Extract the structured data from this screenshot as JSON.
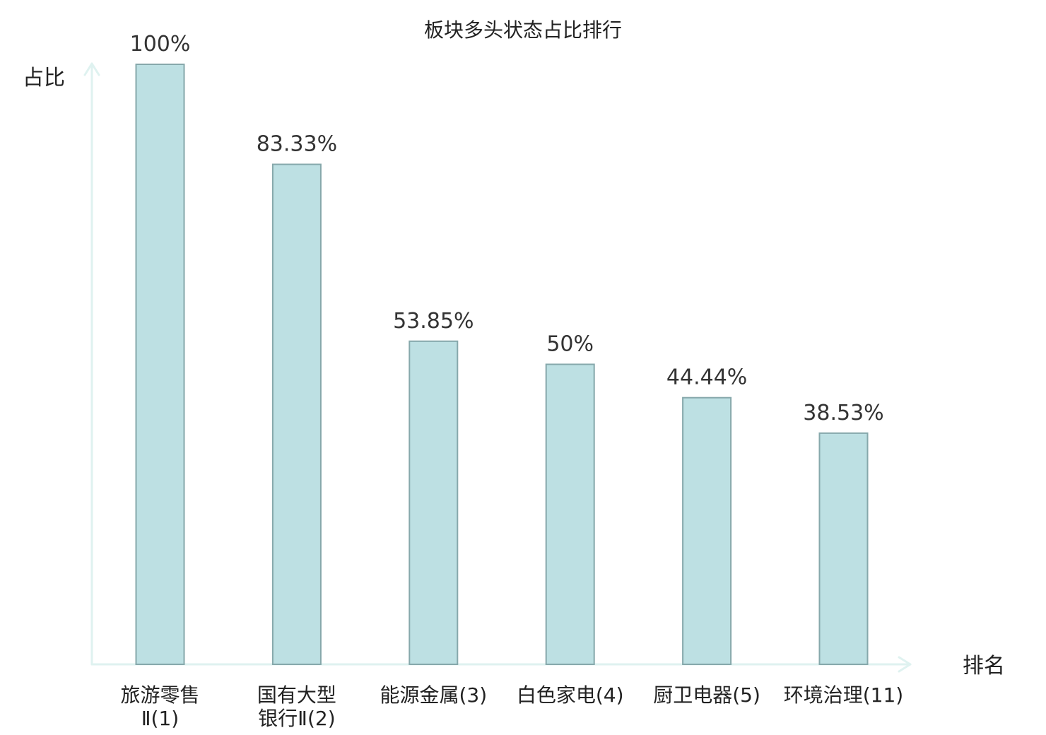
{
  "chart_data": {
    "type": "bar",
    "title": "板块多头状态占比排行",
    "ylabel": "占比",
    "xlabel": "排名",
    "ylim": [
      0,
      100
    ],
    "categories": [
      {
        "lines": [
          "旅游零售",
          "Ⅱ(1)"
        ],
        "highlight": false
      },
      {
        "lines": [
          "国有大型",
          "银行Ⅱ(2)"
        ],
        "highlight": false
      },
      {
        "lines": [
          "能源金属(3)"
        ],
        "highlight": false
      },
      {
        "lines": [
          "白色家电(4)"
        ],
        "highlight": false
      },
      {
        "lines": [
          "厨卫电器(5)"
        ],
        "highlight": false
      },
      {
        "lines": [
          "环境治理(11)"
        ],
        "highlight": true
      }
    ],
    "values": [
      100,
      83.33,
      53.85,
      50,
      44.44,
      38.53
    ],
    "value_labels": [
      "100%",
      "83.33%",
      "53.85%",
      "50%",
      "44.44%",
      "38.53%"
    ],
    "grid": false,
    "legend": "none",
    "colors": {
      "bar_fill": "#bde0e3",
      "bar_stroke": "#86a8ab",
      "axis": "#dff2f0",
      "highlight": "#dd1111"
    }
  }
}
